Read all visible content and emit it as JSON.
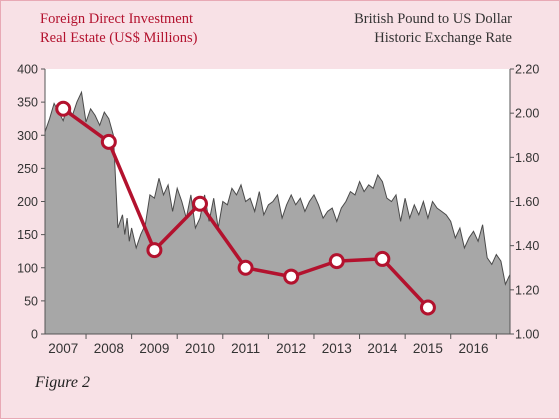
{
  "colors": {
    "background": "#f8e1e6",
    "border": "#e8a9b5",
    "plot_bg": "#ffffff",
    "area_fill": "#a7a7a7",
    "area_stroke": "#4a4a4a",
    "line": "#b3122e",
    "marker_fill": "#ffffff",
    "left_title": "#b3122e",
    "right_title": "#333333",
    "axis_text": "#333333"
  },
  "left_title": {
    "line1": "Foreign Direct Investment",
    "line2": "Real Estate (US$ Millions)"
  },
  "right_title": {
    "line1": "British Pound to US Dollar",
    "line2": "Historic Exchange Rate"
  },
  "figure_label": "Figure 2",
  "chart_data": {
    "type": "area+line",
    "grid": false,
    "x_range": [
      2006.6,
      2016.8
    ],
    "x_ticks": [
      2007,
      2008,
      2009,
      2010,
      2011,
      2012,
      2013,
      2014,
      2015,
      2016
    ],
    "x_tick_labels": [
      "2007",
      "2008",
      "2009",
      "2010",
      "2011",
      "2012",
      "2013",
      "2014",
      "2015",
      "2016"
    ],
    "left_axis": {
      "label": "Foreign Direct Investment Real Estate (US$ Millions)",
      "ylim": [
        0,
        400
      ],
      "ticks": [
        0,
        50,
        100,
        150,
        200,
        250,
        300,
        350,
        400
      ],
      "tick_labels": [
        "0",
        "50",
        "100",
        "150",
        "200",
        "250",
        "300",
        "350",
        "400"
      ]
    },
    "right_axis": {
      "label": "British Pound to US Dollar Historic Exchange Rate",
      "ylim": [
        1.0,
        2.2
      ],
      "ticks": [
        1.0,
        1.2,
        1.4,
        1.6,
        1.8,
        2.0,
        2.2
      ],
      "tick_labels": [
        "1.00",
        "1.20",
        "1.40",
        "1.60",
        "1.80",
        "2.00",
        "2.20"
      ]
    },
    "series": [
      {
        "type": "area",
        "axis": "left",
        "x": [
          2006.6,
          2006.7,
          2006.8,
          2006.9,
          2007.0,
          2007.1,
          2007.2,
          2007.3,
          2007.4,
          2007.5,
          2007.6,
          2007.7,
          2007.8,
          2007.9,
          2008.0,
          2008.1,
          2008.2,
          2008.3,
          2008.35,
          2008.4,
          2008.45,
          2008.5,
          2008.6,
          2008.7,
          2008.8,
          2008.9,
          2009.0,
          2009.1,
          2009.2,
          2009.3,
          2009.4,
          2009.5,
          2009.6,
          2009.7,
          2009.8,
          2009.9,
          2010.0,
          2010.1,
          2010.2,
          2010.3,
          2010.4,
          2010.5,
          2010.6,
          2010.7,
          2010.8,
          2010.9,
          2011.0,
          2011.1,
          2011.2,
          2011.3,
          2011.4,
          2011.5,
          2011.6,
          2011.7,
          2011.8,
          2011.9,
          2012.0,
          2012.1,
          2012.2,
          2012.3,
          2012.4,
          2012.5,
          2012.6,
          2012.7,
          2012.8,
          2012.9,
          2013.0,
          2013.1,
          2013.2,
          2013.3,
          2013.4,
          2013.5,
          2013.6,
          2013.7,
          2013.8,
          2013.9,
          2014.0,
          2014.1,
          2014.2,
          2014.3,
          2014.4,
          2014.5,
          2014.6,
          2014.7,
          2014.8,
          2014.9,
          2015.0,
          2015.1,
          2015.2,
          2015.3,
          2015.4,
          2015.5,
          2015.6,
          2015.7,
          2015.8,
          2015.9,
          2016.0,
          2016.1,
          2016.2,
          2016.3,
          2016.4,
          2016.5,
          2016.6,
          2016.7,
          2016.8
        ],
        "values": [
          305,
          325,
          348,
          335,
          322,
          345,
          330,
          350,
          365,
          320,
          340,
          330,
          315,
          335,
          325,
          300,
          160,
          180,
          150,
          175,
          140,
          160,
          130,
          150,
          165,
          210,
          205,
          235,
          210,
          225,
          185,
          220,
          200,
          175,
          210,
          160,
          175,
          210,
          170,
          205,
          160,
          200,
          195,
          220,
          210,
          225,
          200,
          205,
          185,
          215,
          180,
          195,
          200,
          210,
          175,
          195,
          210,
          195,
          205,
          185,
          200,
          210,
          195,
          175,
          185,
          190,
          170,
          190,
          200,
          215,
          210,
          230,
          215,
          225,
          220,
          240,
          230,
          205,
          200,
          210,
          170,
          205,
          175,
          195,
          180,
          200,
          175,
          200,
          190,
          185,
          180,
          170,
          145,
          160,
          130,
          145,
          155,
          140,
          165,
          115,
          105,
          120,
          110,
          75,
          90
        ]
      },
      {
        "type": "line",
        "axis": "right",
        "markers": true,
        "x": [
          2007,
          2008,
          2009,
          2010,
          2011,
          2012,
          2013,
          2014,
          2015
        ],
        "values": [
          2.02,
          1.87,
          1.38,
          1.59,
          1.3,
          1.26,
          1.33,
          1.34,
          1.12
        ]
      }
    ]
  }
}
